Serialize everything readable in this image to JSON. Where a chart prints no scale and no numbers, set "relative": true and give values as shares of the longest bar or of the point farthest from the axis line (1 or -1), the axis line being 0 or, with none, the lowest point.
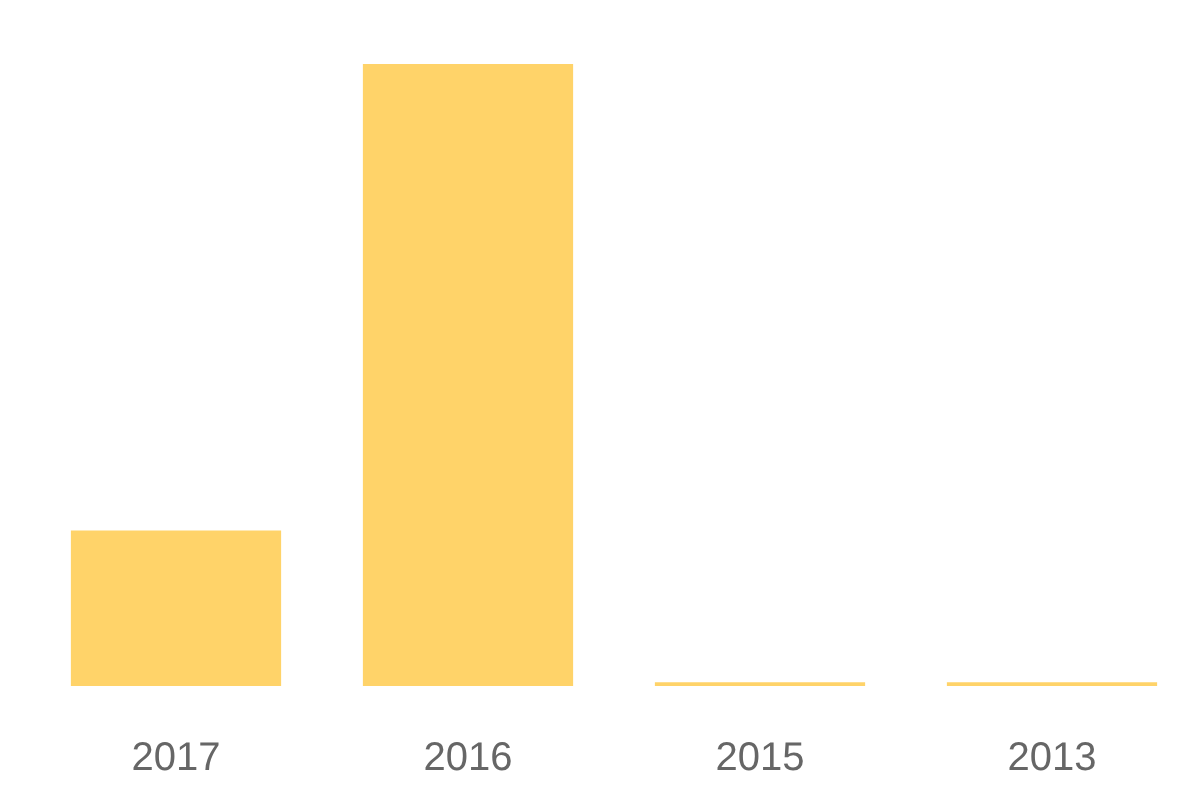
{
  "chart_data": {
    "type": "bar",
    "categories": [
      "2017",
      "2016",
      "2015",
      "2013"
    ],
    "values": [
      0.25,
      1,
      0.006,
      0.006
    ],
    "color": "#ffd369",
    "relative": true
  }
}
